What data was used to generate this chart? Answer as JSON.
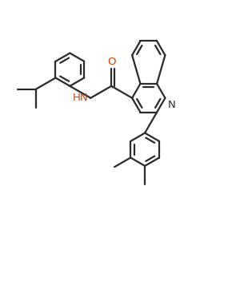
{
  "bg_color": "#ffffff",
  "line_color": "#2a2a2a",
  "bond_lw": 1.6,
  "dbo": 0.055,
  "fs_label": 9.5,
  "n_color": "#2a2a2a",
  "o_color": "#cc4400",
  "hn_color": "#cc4400",
  "xlim": [
    0,
    9
  ],
  "ylim": [
    0,
    10.4
  ],
  "figsize": [
    3.05,
    3.52
  ],
  "dpi": 100
}
